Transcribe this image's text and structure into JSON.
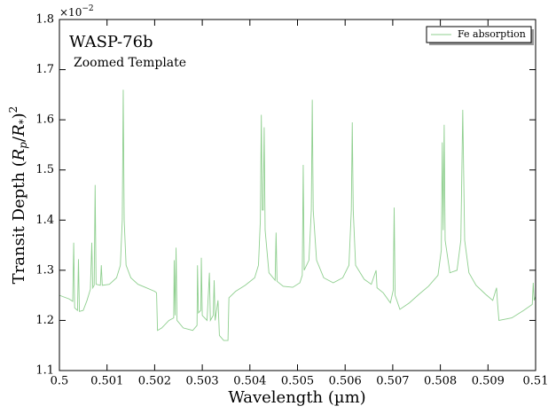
{
  "chart_data": {
    "type": "line",
    "title": "WASP-76b",
    "subtitle": "Zoomed Template",
    "xlabel": "Wavelength (µm)",
    "ylabel_parts": [
      "Transit Depth (",
      "R",
      "p",
      "/",
      "R",
      "*",
      ")",
      "2"
    ],
    "offset_text": {
      "base": "×10",
      "exponent": "−2"
    },
    "xlim": [
      0.5,
      0.51
    ],
    "ylim": [
      1.1,
      1.8
    ],
    "xticks": [
      0.5,
      0.501,
      0.502,
      0.503,
      0.504,
      0.505,
      0.506,
      0.507,
      0.508,
      0.509,
      0.51
    ],
    "yticks": [
      1.1,
      1.2,
      1.3,
      1.4,
      1.5,
      1.6,
      1.7,
      1.8
    ],
    "legend": "upper right",
    "grid": false,
    "series": [
      {
        "name": "Fe absorption",
        "color": "#8fcf8f",
        "x": [
          0.5,
          0.5002,
          0.50028,
          0.5003,
          0.50032,
          0.50038,
          0.5004,
          0.50042,
          0.5005,
          0.50058,
          0.50065,
          0.50068,
          0.5007,
          0.50073,
          0.50075,
          0.50077,
          0.50086,
          0.50088,
          0.5009,
          0.50105,
          0.5012,
          0.50128,
          0.50132,
          0.50134,
          0.50136,
          0.5014,
          0.5015,
          0.50165,
          0.5018,
          0.502,
          0.50204,
          0.50206,
          0.50215,
          0.5023,
          0.5024,
          0.50241,
          0.50243,
          0.50245,
          0.50247,
          0.5026,
          0.5028,
          0.50289,
          0.5029,
          0.50292,
          0.50297,
          0.50298,
          0.503,
          0.5031,
          0.50315,
          0.50317,
          0.50323,
          0.50325,
          0.50327,
          0.50333,
          0.50336,
          0.50345,
          0.50354,
          0.50356,
          0.5037,
          0.5039,
          0.5041,
          0.50418,
          0.50422,
          0.50424,
          0.50426,
          0.50428,
          0.5043,
          0.50432,
          0.5044,
          0.50453,
          0.50455,
          0.50457,
          0.5047,
          0.5049,
          0.50505,
          0.5051,
          0.50512,
          0.50514,
          0.50524,
          0.50529,
          0.50531,
          0.50533,
          0.5054,
          0.50555,
          0.50575,
          0.50595,
          0.50608,
          0.50613,
          0.50615,
          0.50617,
          0.50622,
          0.5064,
          0.50655,
          0.50665,
          0.50667,
          0.5068,
          0.50695,
          0.50701,
          0.50703,
          0.50705,
          0.50715,
          0.50735,
          0.50755,
          0.50775,
          0.50795,
          0.50802,
          0.50804,
          0.50806,
          0.50808,
          0.5081,
          0.5082,
          0.50835,
          0.50843,
          0.50847,
          0.50851,
          0.5086,
          0.50875,
          0.50895,
          0.5091,
          0.50918,
          0.5092,
          0.50923,
          0.5095,
          0.50975,
          0.50993,
          0.50995,
          0.50997,
          0.51
        ],
        "values": [
          1.25,
          1.243,
          1.238,
          1.355,
          1.225,
          1.22,
          1.322,
          1.218,
          1.22,
          1.24,
          1.262,
          1.355,
          1.265,
          1.27,
          1.47,
          1.272,
          1.27,
          1.31,
          1.27,
          1.272,
          1.285,
          1.31,
          1.4,
          1.66,
          1.4,
          1.31,
          1.285,
          1.272,
          1.266,
          1.258,
          1.255,
          1.18,
          1.185,
          1.2,
          1.205,
          1.32,
          1.21,
          1.345,
          1.2,
          1.185,
          1.18,
          1.19,
          1.31,
          1.215,
          1.22,
          1.325,
          1.21,
          1.2,
          1.295,
          1.2,
          1.21,
          1.28,
          1.2,
          1.24,
          1.17,
          1.16,
          1.16,
          1.245,
          1.258,
          1.27,
          1.285,
          1.31,
          1.4,
          1.61,
          1.42,
          1.42,
          1.585,
          1.38,
          1.295,
          1.28,
          1.375,
          1.278,
          1.268,
          1.266,
          1.275,
          1.29,
          1.51,
          1.3,
          1.32,
          1.42,
          1.64,
          1.42,
          1.32,
          1.285,
          1.275,
          1.285,
          1.31,
          1.42,
          1.595,
          1.42,
          1.31,
          1.282,
          1.272,
          1.3,
          1.265,
          1.255,
          1.235,
          1.26,
          1.425,
          1.25,
          1.222,
          1.235,
          1.252,
          1.268,
          1.29,
          1.34,
          1.555,
          1.38,
          1.59,
          1.36,
          1.295,
          1.3,
          1.36,
          1.62,
          1.36,
          1.295,
          1.27,
          1.252,
          1.24,
          1.265,
          1.235,
          1.2,
          1.205,
          1.22,
          1.232,
          1.275,
          1.24,
          1.248
        ]
      }
    ]
  }
}
